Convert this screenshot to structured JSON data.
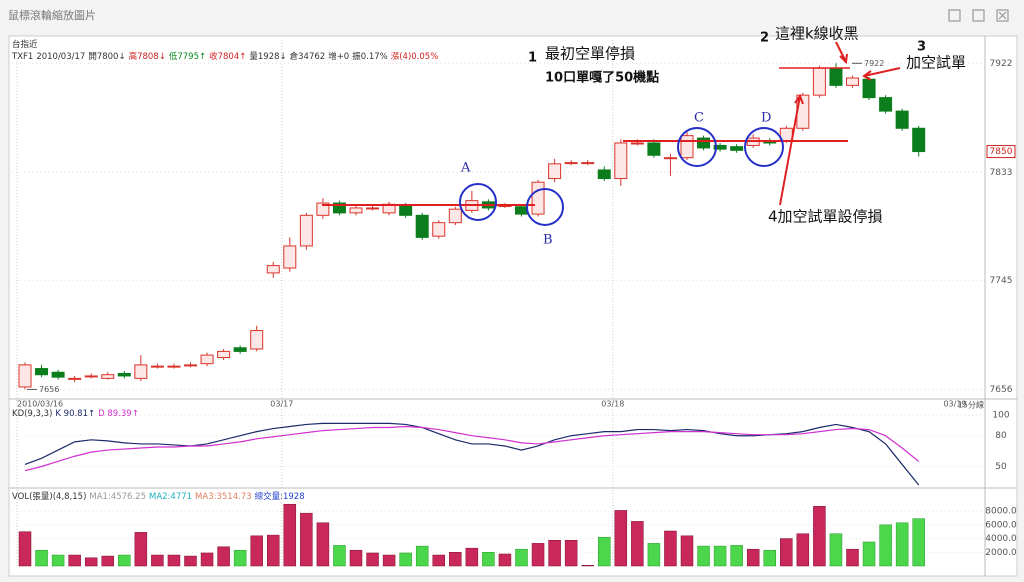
{
  "window_title": "鼠標滾輪縮放圖片",
  "chart_data": [
    {
      "type": "candlestick",
      "symbol": "台指近",
      "quote": [
        {
          "text": "TXF1",
          "color": "#333"
        },
        {
          "text": "2010/03/17",
          "color": "#333"
        },
        {
          "text": "開7800↓",
          "color": "#333"
        },
        {
          "text": "高7808↓",
          "color": "#d02020"
        },
        {
          "text": "低7795↑",
          "color": "#0a8a1a"
        },
        {
          "text": "收7804↑",
          "color": "#d02020"
        },
        {
          "text": "量1928↓",
          "color": "#333"
        },
        {
          "text": "倉34762",
          "color": "#333"
        },
        {
          "text": "增+0",
          "color": "#333"
        },
        {
          "text": "振0.17%",
          "color": "#333"
        },
        {
          "text": "漲(4)0.05%",
          "color": "#d02020"
        }
      ],
      "categories": [
        "2010/03/16",
        null,
        null,
        null,
        null,
        null,
        null,
        null,
        null,
        null,
        null,
        null,
        null,
        null,
        null,
        null,
        "03/17",
        null,
        null,
        null,
        null,
        null,
        null,
        null,
        null,
        null,
        null,
        null,
        null,
        null,
        null,
        null,
        null,
        null,
        null,
        null,
        "03/18",
        null,
        null,
        null,
        null,
        null,
        null,
        null,
        null,
        null,
        null,
        null,
        null,
        null,
        null,
        null,
        null,
        null,
        null
      ],
      "x_end_label": "03/19",
      "period": "15分線",
      "open": [
        7658,
        7673,
        7670,
        7665,
        7667,
        7665,
        7669,
        7665,
        7675,
        7675,
        7676,
        7677,
        7682,
        7690,
        7689,
        7751,
        7755,
        7773,
        7798,
        7808,
        7800,
        7804,
        7800,
        7806,
        7798,
        7781,
        7792,
        7802,
        7809,
        7806,
        7805,
        7799,
        7828,
        7841,
        7841,
        7835,
        7828,
        7857,
        7857,
        7845,
        7845,
        7861,
        7855,
        7854,
        7855,
        7859,
        7859,
        7869,
        7896,
        7918,
        7904,
        7909,
        7894,
        7883,
        7869
      ],
      "high": [
        7678,
        7676,
        7672,
        7667,
        7669,
        7670,
        7671,
        7684,
        7677,
        7677,
        7678,
        7686,
        7689,
        7692,
        7708,
        7760,
        7780,
        7800,
        7812,
        7810,
        7806,
        7806,
        7809,
        7808,
        7800,
        7794,
        7805,
        7818,
        7811,
        7808,
        7807,
        7827,
        7844,
        7843,
        7843,
        7838,
        7860,
        7860,
        7860,
        7848,
        7866,
        7863,
        7857,
        7856,
        7864,
        7861,
        7871,
        7898,
        7920,
        7922,
        7912,
        7911,
        7896,
        7885,
        7871
      ],
      "low": [
        7656,
        7666,
        7664,
        7662,
        7665,
        7664,
        7665,
        7663,
        7673,
        7673,
        7674,
        7675,
        7680,
        7685,
        7687,
        7747,
        7752,
        7770,
        7795,
        7798,
        7798,
        7802,
        7798,
        7796,
        7778,
        7779,
        7790,
        7800,
        7802,
        7804,
        7797,
        7797,
        7825,
        7839,
        7839,
        7826,
        7822,
        7855,
        7845,
        7830,
        7843,
        7851,
        7850,
        7849,
        7853,
        7855,
        7857,
        7867,
        7894,
        7902,
        7902,
        7892,
        7881,
        7867,
        7846
      ],
      "close": [
        7676,
        7668,
        7666,
        7665,
        7667,
        7668,
        7667,
        7676,
        7675,
        7675,
        7676,
        7684,
        7687,
        7687,
        7704,
        7757,
        7773,
        7798,
        7808,
        7800,
        7804,
        7804,
        7807,
        7798,
        7780,
        7792,
        7803,
        7810,
        7804,
        7806,
        7799,
        7825,
        7840,
        7841,
        7841,
        7828,
        7857,
        7857,
        7847,
        7845,
        7863,
        7853,
        7852,
        7851,
        7861,
        7857,
        7869,
        7896,
        7918,
        7904,
        7910,
        7894,
        7883,
        7869,
        7850
      ],
      "up_color": "#d9342b",
      "up_fill": "#fde6e6",
      "down_color": "#0b7d1c",
      "ylim": [
        7649,
        7941
      ],
      "yticks": [
        7656,
        7745,
        7833,
        7922
      ],
      "last_price": 7850,
      "high_label": 7922,
      "low_label": 7656,
      "annotations": [
        "1",
        "最初空單停損",
        "10口單嘎了50機點",
        "2",
        "這裡k線收黑",
        "3",
        "加空試單",
        "4加空試單設停損",
        "A",
        "B",
        "C",
        "D"
      ]
    },
    {
      "type": "line",
      "header": [
        {
          "text": "KD(9,3,3)",
          "color": "#333"
        },
        {
          "text": "K 90.81↑",
          "color": "#1c2a6b"
        },
        {
          "text": "D 89.39↑",
          "color": "#d030d0"
        }
      ],
      "ylim": [
        30,
        108
      ],
      "yticks": [
        50,
        80,
        100
      ],
      "series": [
        {
          "color": "#1c2a6b",
          "values": [
            52,
            58,
            66,
            74,
            76,
            75,
            73,
            72,
            72,
            71,
            70,
            72,
            76,
            80,
            84,
            87,
            89,
            91,
            92,
            92,
            92,
            92,
            92,
            91,
            88,
            82,
            76,
            72,
            72,
            70,
            66,
            70,
            76,
            80,
            82,
            84,
            84,
            86,
            86,
            85,
            86,
            85,
            82,
            80,
            80,
            81,
            82,
            84,
            88,
            91,
            88,
            84,
            72,
            52,
            32
          ]
        },
        {
          "color": "#d030d0",
          "values": [
            46,
            50,
            55,
            60,
            64,
            66,
            67,
            68,
            69,
            69,
            70,
            70,
            72,
            74,
            77,
            79,
            81,
            83,
            85,
            86,
            87,
            88,
            88,
            89,
            88,
            86,
            83,
            80,
            78,
            76,
            73,
            72,
            74,
            76,
            78,
            80,
            81,
            82,
            83,
            84,
            84,
            84,
            83,
            82,
            81,
            81,
            81,
            82,
            84,
            86,
            87,
            86,
            80,
            68,
            55
          ]
        }
      ]
    },
    {
      "type": "bar",
      "header": [
        {
          "text": "VOL(張量)(4,8,15)",
          "color": "#333"
        },
        {
          "text": "MA1:4576.25",
          "color": "#999"
        },
        {
          "text": "MA2:4771",
          "color": "#20b0c0"
        },
        {
          "text": "MA3:3514.73",
          "color": "#e08060"
        },
        {
          "text": "總交量:1928",
          "color": "#2040d0"
        }
      ],
      "ylim": [
        0,
        10200
      ],
      "yticks": [
        {
          "value": 2000,
          "label": "2000.0"
        },
        {
          "value": 4000,
          "label": "4000.0"
        },
        {
          "value": 6000,
          "label": "6000.0"
        },
        {
          "value": 8000,
          "label": "8000.0"
        }
      ],
      "up_color": "#c8285a",
      "down_color": "#4cd64c",
      "values": [
        5000,
        2300,
        1600,
        1600,
        1200,
        1450,
        1600,
        4900,
        1600,
        1600,
        1450,
        1900,
        2800,
        2300,
        4400,
        4500,
        9000,
        7700,
        6300,
        3000,
        2300,
        1900,
        1600,
        1900,
        2900,
        1600,
        2000,
        2600,
        2000,
        1750,
        2450,
        3300,
        3750,
        3750,
        100,
        4200,
        8100,
        6500,
        3300,
        5100,
        4400,
        2900,
        2900,
        3000,
        2450,
        2300,
        4000,
        4700,
        8700,
        4700,
        2450,
        3500,
        6000,
        6300,
        6900
      ]
    }
  ]
}
